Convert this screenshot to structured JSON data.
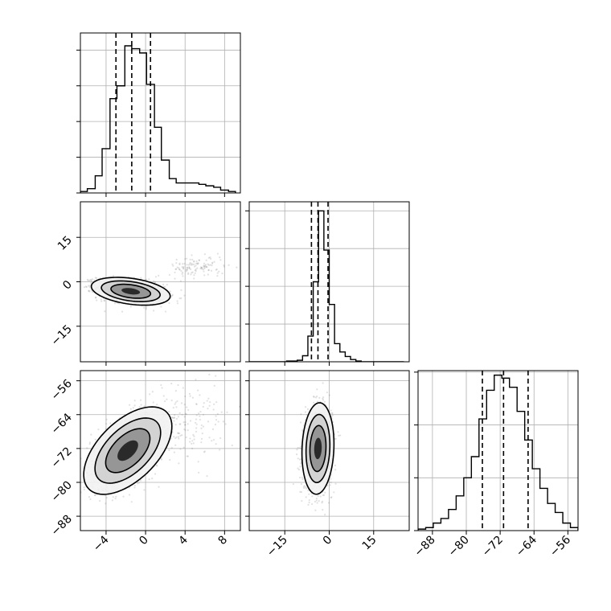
{
  "chart_data": {
    "type": "corner",
    "parameters": 3,
    "grid": true,
    "histograms": [
      {
        "param": 0,
        "bin_edges": [
          -6.6,
          -5.9,
          -5.1,
          -4.4,
          -3.6,
          -2.9,
          -2.1,
          -1.4,
          -0.6,
          0.1,
          0.9,
          1.6,
          2.4,
          3.1,
          3.9,
          4.6,
          5.4,
          6.1,
          6.9,
          7.6,
          8.4,
          9.1
        ],
        "counts": [
          1,
          3,
          12,
          31,
          66,
          75,
          103,
          101,
          98,
          76,
          46,
          23,
          10,
          7,
          7,
          7,
          6,
          5,
          4,
          2,
          1
        ],
        "quantiles": [
          -3.0,
          -1.4,
          0.5
        ],
        "xlim": [
          -6.6,
          9.6
        ],
        "ylim": [
          0,
          112
        ]
      },
      {
        "param": 1,
        "bin_edges": [
          -27.0,
          -25.2,
          -23.4,
          -21.6,
          -19.8,
          -18.0,
          -16.2,
          -14.4,
          -12.6,
          -10.8,
          -9.0,
          -7.2,
          -5.4,
          -3.6,
          -1.8,
          0.0,
          1.8,
          3.6,
          5.4,
          7.2,
          9.0,
          10.8,
          12.6,
          14.4,
          16.2,
          18.0,
          19.8,
          21.6,
          23.4,
          25.2
        ],
        "counts": [
          0,
          0,
          0,
          0,
          0,
          0,
          0,
          1,
          1,
          2,
          8,
          34,
          106,
          200,
          148,
          76,
          24,
          13,
          7,
          3,
          1,
          0,
          0,
          0,
          0,
          0,
          0,
          0,
          0
        ],
        "quantiles": [
          -6.0,
          -3.8,
          -0.4
        ],
        "xlim": [
          -27,
          27
        ],
        "ylim": [
          0,
          212
        ]
      },
      {
        "param": 2,
        "bin_edges": [
          -91.4,
          -89.6,
          -87.8,
          -86.0,
          -84.2,
          -82.4,
          -80.6,
          -78.8,
          -77.0,
          -75.2,
          -73.4,
          -71.6,
          -69.8,
          -68.0,
          -66.2,
          -64.4,
          -62.6,
          -60.8,
          -59.0,
          -57.2,
          -55.4,
          -53.6
        ],
        "counts": [
          1,
          2,
          5,
          8,
          14,
          23,
          35,
          49,
          74,
          93,
          103,
          101,
          95,
          79,
          60,
          41,
          28,
          18,
          12,
          5,
          2
        ],
        "quantiles": [
          -76.2,
          -71.2,
          -65.4
        ],
        "xlim": [
          -91.4,
          -53.6
        ],
        "ylim": [
          0,
          106
        ]
      }
    ],
    "pair_plots": [
      {
        "x_param": 0,
        "y_param": 1,
        "xlim": [
          -6.6,
          9.6
        ],
        "ylim": [
          -27,
          27
        ],
        "core": {
          "mean": [
            -1.5,
            -3.2
          ],
          "sd": [
            1.7,
            2.0
          ],
          "rho": -0.35,
          "n": 1500
        },
        "cluster": {
          "mean": [
            5.2,
            5.0
          ],
          "sd": [
            1.4,
            1.8
          ],
          "rho": 0.0,
          "n": 120
        },
        "contours": [
          {
            "level": 0.5,
            "scale": 1.18
          },
          {
            "level": 1.0,
            "scale": 1.75
          },
          {
            "level": 1.5,
            "scale": 2.35
          }
        ]
      },
      {
        "x_param": 0,
        "y_param": 2,
        "xlim": [
          -6.6,
          9.6
        ],
        "ylim": [
          -91.4,
          -53.6
        ],
        "core": {
          "mean": [
            -1.8,
            -72.5
          ],
          "sd": [
            1.9,
            4.4
          ],
          "rho": 0.55,
          "n": 1500
        },
        "cluster": {
          "mean": [
            4.5,
            -66.0
          ],
          "sd": [
            2.2,
            4.5
          ],
          "rho": 0.0,
          "n": 140
        },
        "contours": [
          {
            "level": 0.5,
            "scale": 1.18
          },
          {
            "level": 1.0,
            "scale": 1.75
          },
          {
            "level": 1.5,
            "scale": 2.35
          }
        ]
      },
      {
        "x_param": 1,
        "y_param": 2,
        "xlim": [
          -27,
          27
        ],
        "ylim": [
          -91.4,
          -53.6
        ],
        "core": {
          "mean": [
            -3.8,
            -72.0
          ],
          "sd": [
            2.3,
            4.6
          ],
          "rho": 0.1,
          "n": 1600
        },
        "cluster": {
          "mean": [
            0,
            0
          ],
          "sd": [
            0,
            0
          ],
          "rho": 0,
          "n": 0
        },
        "contours": [
          {
            "level": 0.5,
            "scale": 1.18
          },
          {
            "level": 1.0,
            "scale": 1.75
          },
          {
            "level": 1.5,
            "scale": 2.35
          }
        ]
      }
    ],
    "axis_ticks": {
      "param0": [
        -4,
        0,
        4,
        8
      ],
      "param1": [
        -15,
        0,
        15
      ],
      "param2": [
        -88,
        -80,
        -72,
        -64,
        -56
      ]
    },
    "tick_labels": {
      "param0": [
        "−4",
        "0",
        "4",
        "8"
      ],
      "param1": [
        "−15",
        "0",
        "15"
      ],
      "param2": [
        "−88",
        "−80",
        "−72",
        "−64",
        "−56"
      ]
    },
    "hist_ticks": {
      "param0": [
        0,
        25,
        50,
        75,
        100
      ],
      "param1": [
        0,
        50,
        100,
        150,
        200
      ],
      "param2": [
        0,
        35,
        70,
        105
      ]
    }
  }
}
